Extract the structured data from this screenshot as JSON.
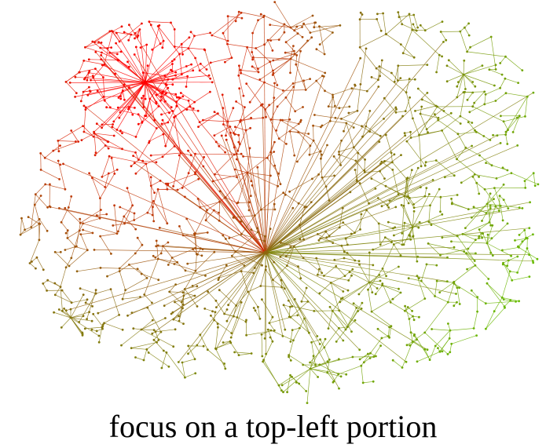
{
  "caption": "focus on a top-left portion",
  "colors": {
    "focus": "#ff0000",
    "mid": "#8a6a10",
    "far": "#66c000",
    "background": "#ffffff"
  },
  "graph": {
    "kind": "node-link network",
    "hubs": [
      {
        "name": "focus-hub",
        "color_role": "focus"
      },
      {
        "name": "central-hub",
        "color_role": "mid"
      }
    ]
  }
}
